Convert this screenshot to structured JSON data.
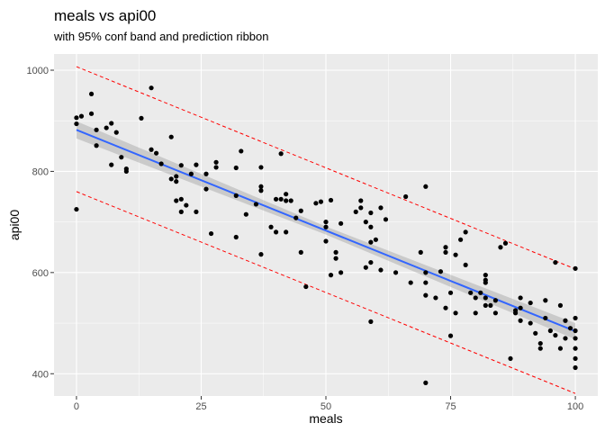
{
  "chart_data": {
    "type": "scatter",
    "title": "meals vs api00",
    "subtitle": "with 95% conf band and prediction ribbon",
    "xlabel": "meals",
    "ylabel": "api00",
    "xlim": [
      -4.5,
      104.5
    ],
    "ylim": [
      356,
      1032
    ],
    "x_ticks": [
      0,
      25,
      50,
      75,
      100
    ],
    "y_ticks": [
      400,
      600,
      800,
      1000
    ],
    "grid": true,
    "colors": {
      "panel": "#ebebeb",
      "grid": "#ffffff",
      "points": "#000000",
      "fit_line": "#3366ff",
      "conf_band": "#999999",
      "prediction_lines": "#ff0000"
    },
    "fit_line": {
      "x": [
        0,
        100
      ],
      "y": [
        882,
        484
      ]
    },
    "conf_band": {
      "x": [
        0,
        50,
        100
      ],
      "lower": [
        865,
        675,
        468
      ],
      "upper": [
        899,
        691,
        500
      ]
    },
    "prediction_upper": {
      "x": [
        0,
        100
      ],
      "y": [
        1007,
        607
      ]
    },
    "prediction_lower": {
      "x": [
        0,
        100
      ],
      "y": [
        760,
        361
      ]
    },
    "points": [
      [
        0,
        906
      ],
      [
        0,
        894
      ],
      [
        0,
        725
      ],
      [
        1,
        909
      ],
      [
        3,
        953
      ],
      [
        3,
        914
      ],
      [
        4,
        851
      ],
      [
        4,
        882
      ],
      [
        6,
        886
      ],
      [
        7,
        895
      ],
      [
        7,
        813
      ],
      [
        8,
        877
      ],
      [
        9,
        828
      ],
      [
        10,
        805
      ],
      [
        10,
        800
      ],
      [
        13,
        905
      ],
      [
        15,
        965
      ],
      [
        15,
        843
      ],
      [
        16,
        836
      ],
      [
        17,
        815
      ],
      [
        19,
        868
      ],
      [
        19,
        785
      ],
      [
        20,
        790
      ],
      [
        20,
        780
      ],
      [
        20,
        742
      ],
      [
        21,
        812
      ],
      [
        21,
        745
      ],
      [
        21,
        720
      ],
      [
        22,
        733
      ],
      [
        23,
        795
      ],
      [
        24,
        813
      ],
      [
        24,
        720
      ],
      [
        26,
        795
      ],
      [
        26,
        765
      ],
      [
        27,
        677
      ],
      [
        28,
        818
      ],
      [
        28,
        808
      ],
      [
        32,
        807
      ],
      [
        32,
        752
      ],
      [
        32,
        670
      ],
      [
        33,
        840
      ],
      [
        34,
        715
      ],
      [
        36,
        735
      ],
      [
        37,
        808
      ],
      [
        37,
        770
      ],
      [
        37,
        762
      ],
      [
        37,
        636
      ],
      [
        39,
        690
      ],
      [
        40,
        680
      ],
      [
        40,
        745
      ],
      [
        41,
        835
      ],
      [
        41,
        745
      ],
      [
        42,
        742
      ],
      [
        42,
        755
      ],
      [
        42,
        680
      ],
      [
        43,
        742
      ],
      [
        44,
        708
      ],
      [
        45,
        722
      ],
      [
        45,
        640
      ],
      [
        46,
        572
      ],
      [
        48,
        737
      ],
      [
        49,
        740
      ],
      [
        50,
        700
      ],
      [
        50,
        690
      ],
      [
        50,
        662
      ],
      [
        51,
        743
      ],
      [
        51,
        595
      ],
      [
        52,
        640
      ],
      [
        52,
        628
      ],
      [
        53,
        600
      ],
      [
        53,
        697
      ],
      [
        56,
        720
      ],
      [
        57,
        742
      ],
      [
        57,
        728
      ],
      [
        58,
        700
      ],
      [
        58,
        610
      ],
      [
        59,
        718
      ],
      [
        59,
        690
      ],
      [
        59,
        660
      ],
      [
        59,
        620
      ],
      [
        59,
        503
      ],
      [
        60,
        665
      ],
      [
        61,
        605
      ],
      [
        61,
        728
      ],
      [
        62,
        705
      ],
      [
        64,
        600
      ],
      [
        66,
        750
      ],
      [
        67,
        580
      ],
      [
        69,
        640
      ],
      [
        70,
        770
      ],
      [
        70,
        600
      ],
      [
        70,
        580
      ],
      [
        70,
        555
      ],
      [
        70,
        382
      ],
      [
        72,
        550
      ],
      [
        73,
        602
      ],
      [
        74,
        650
      ],
      [
        74,
        640
      ],
      [
        74,
        530
      ],
      [
        75,
        475
      ],
      [
        75,
        560
      ],
      [
        76,
        635
      ],
      [
        76,
        520
      ],
      [
        77,
        665
      ],
      [
        78,
        680
      ],
      [
        78,
        615
      ],
      [
        79,
        560
      ],
      [
        80,
        550
      ],
      [
        80,
        520
      ],
      [
        81,
        560
      ],
      [
        82,
        595
      ],
      [
        82,
        585
      ],
      [
        82,
        580
      ],
      [
        82,
        550
      ],
      [
        82,
        535
      ],
      [
        83,
        535
      ],
      [
        84,
        545
      ],
      [
        84,
        520
      ],
      [
        85,
        650
      ],
      [
        86,
        658
      ],
      [
        87,
        430
      ],
      [
        88,
        520
      ],
      [
        88,
        525
      ],
      [
        89,
        550
      ],
      [
        89,
        530
      ],
      [
        89,
        505
      ],
      [
        91,
        540
      ],
      [
        91,
        500
      ],
      [
        92,
        480
      ],
      [
        93,
        460
      ],
      [
        93,
        450
      ],
      [
        94,
        545
      ],
      [
        94,
        510
      ],
      [
        95,
        485
      ],
      [
        96,
        620
      ],
      [
        96,
        476
      ],
      [
        97,
        535
      ],
      [
        97,
        450
      ],
      [
        98,
        505
      ],
      [
        98,
        470
      ],
      [
        99,
        490
      ],
      [
        100,
        608
      ],
      [
        100,
        510
      ],
      [
        100,
        485
      ],
      [
        100,
        470
      ],
      [
        100,
        450
      ],
      [
        100,
        430
      ],
      [
        100,
        412
      ]
    ]
  }
}
